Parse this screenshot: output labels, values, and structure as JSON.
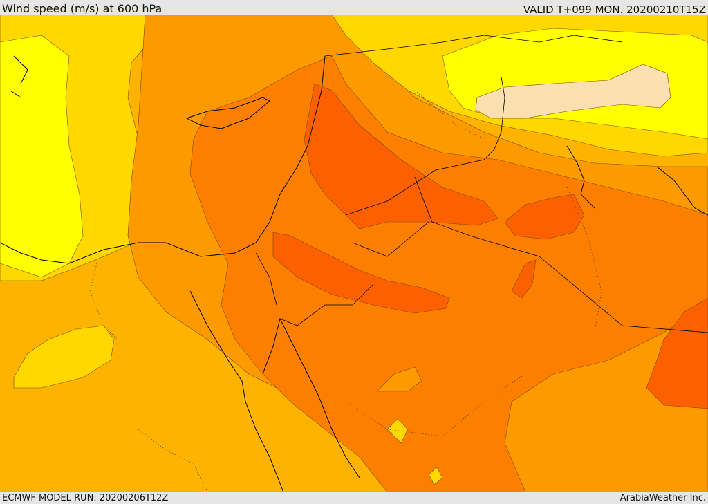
{
  "header": {
    "title": "Wind speed (m/s) at 600 hPa",
    "valid_time": "VALID T+099 MON. 20200210T15Z"
  },
  "footer": {
    "model_run": "ECMWF MODEL RUN: 20200206T12Z",
    "credit": "ArabiaWeather Inc."
  },
  "colors": {
    "band_light_yellow": "#ffe070",
    "band_pale": "#fde0b0",
    "band_yellow": "#ffff00",
    "band_gold": "#ffd800",
    "band_amber": "#fdb300",
    "band_orange": "#fd9a00",
    "band_dark_orange": "#fd7f00",
    "band_red_orange": "#fd6000"
  }
}
